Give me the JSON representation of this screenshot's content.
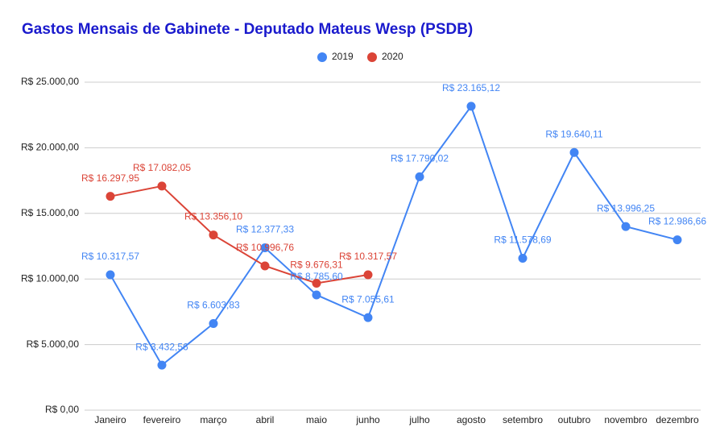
{
  "chart_data": {
    "type": "line",
    "title": "Gastos Mensais de Gabinete - Deputado Mateus Wesp (PSDB)",
    "categories": [
      "Janeiro",
      "fevereiro",
      "março",
      "abril",
      "maio",
      "junho",
      "julho",
      "agosto",
      "setembro",
      "outubro",
      "novembro",
      "dezembro"
    ],
    "series": [
      {
        "name": "2019",
        "color": "#4285f4",
        "values": [
          10317.57,
          3432.56,
          6603.83,
          12377.33,
          8785.6,
          7055.61,
          17790.02,
          23165.12,
          11578.69,
          19640.11,
          13996.25,
          12986.66
        ],
        "value_labels": [
          "R$ 10.317,57",
          "R$ 3.432,56",
          "R$ 6.603,83",
          "R$ 12.377,33",
          "R$ 8.785,60",
          "R$ 7.055,61",
          "R$ 17.790,02",
          "R$ 23.165,12",
          "R$ 11.578,69",
          "R$ 19.640,11",
          "R$ 13.996,25",
          "R$ 12.986,66"
        ]
      },
      {
        "name": "2020",
        "color": "#db4437",
        "values": [
          16297.95,
          17082.05,
          13356.1,
          10996.76,
          9676.31,
          10317.57,
          null,
          null,
          null,
          null,
          null,
          null
        ],
        "value_labels": [
          "R$ 16.297,95",
          "R$ 17.082,05",
          "R$ 13.356,10",
          "R$ 10.996,76",
          "R$ 9.676,31",
          "R$ 10.317,57",
          null,
          null,
          null,
          null,
          null,
          null
        ]
      }
    ],
    "ylim": [
      0,
      25000
    ],
    "yticks": [
      {
        "value": 0,
        "label": "R$ 0,00"
      },
      {
        "value": 5000,
        "label": "R$ 5.000,00"
      },
      {
        "value": 10000,
        "label": "R$ 10.000,00"
      },
      {
        "value": 15000,
        "label": "R$ 15.000,00"
      },
      {
        "value": 20000,
        "label": "R$ 20.000,00"
      },
      {
        "value": 25000,
        "label": "R$ 25.000,00"
      }
    ],
    "grid": true,
    "legend": "top"
  }
}
